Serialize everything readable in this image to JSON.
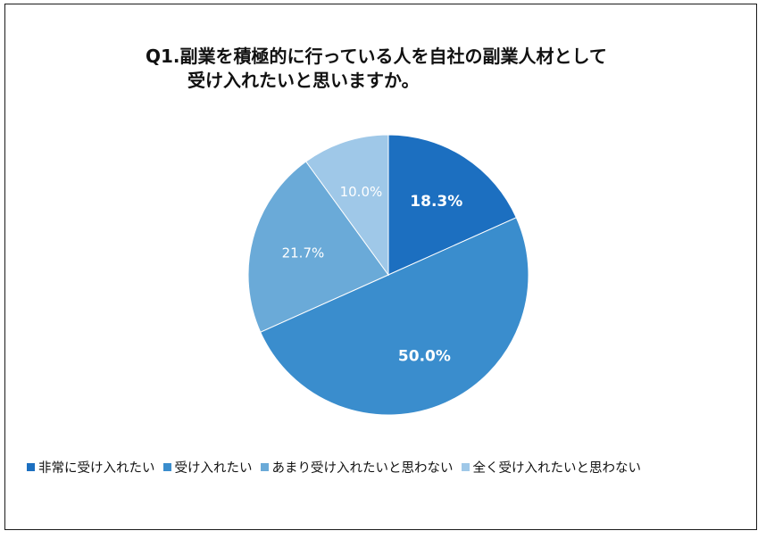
{
  "chart_data": {
    "type": "pie",
    "title_line1": "Q1.副業を積極的に行っている人を自社の副業人材として",
    "title_line2": "受け入れたいと思いますか。",
    "slices": [
      {
        "label": "非常に受け入れたい",
        "value": 18.3,
        "value_label": "18.3%",
        "color": "#1C6FC0",
        "text_color": "#ffffff",
        "bold": true
      },
      {
        "label": "受け入れたい",
        "value": 50.0,
        "value_label": "50.0%",
        "color": "#3A8DCD",
        "text_color": "#ffffff",
        "bold": true
      },
      {
        "label": "あまり受け入れたいと思わない",
        "value": 21.7,
        "value_label": "21.7%",
        "color": "#6AAAD8",
        "text_color": "#ffffff",
        "bold": false
      },
      {
        "label": "全く受け入れたいと思わない",
        "value": 10.0,
        "value_label": "10.0%",
        "color": "#9FC8E8",
        "text_color": "#ffffff",
        "bold": false
      }
    ],
    "legend_position": "bottom"
  }
}
